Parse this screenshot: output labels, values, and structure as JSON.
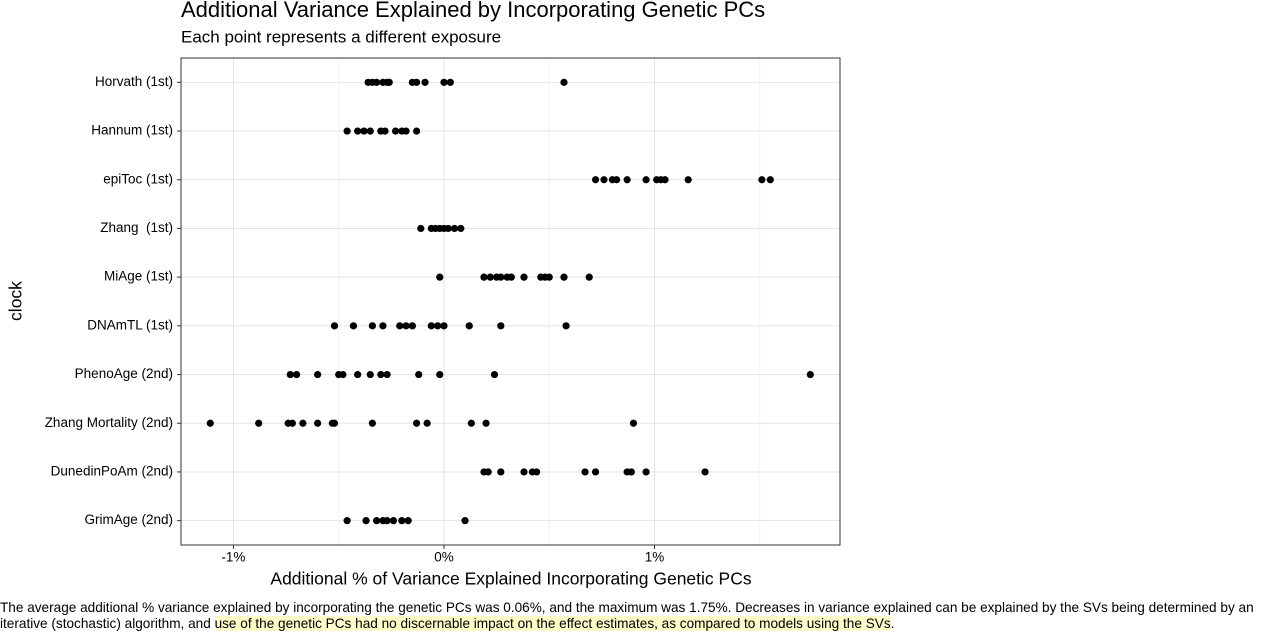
{
  "chart_data": {
    "type": "dot",
    "title": "Additional Variance Explained by Incorporating Genetic PCs",
    "subtitle": "Each point represents a different exposure",
    "x_label": "Additional % of Variance Explained Incorporating Genetic PCs",
    "y_label": "clock",
    "color": "#000000",
    "grid": true,
    "xlim": [
      -1.249,
      1.881
    ],
    "xticks": [
      {
        "value": -1,
        "label": "-1%"
      },
      {
        "value": 0,
        "label": "0%"
      },
      {
        "value": 1,
        "label": "1%"
      }
    ],
    "minor_xticks": [
      -0.5,
      0.5,
      1.5
    ],
    "categories": [
      "Horvath (1st)",
      "Hannum (1st)",
      "epiToc (1st)",
      "Zhang  (1st)",
      "MiAge (1st)",
      "DNAmTL (1st)",
      "PhenoAge (2nd)",
      "Zhang Mortality (2nd)",
      "DunedinPoAm (2nd)",
      "GrimAge (2nd)"
    ],
    "values": [
      [
        -0.36,
        -0.34,
        -0.32,
        -0.29,
        -0.27,
        -0.26,
        -0.15,
        -0.13,
        -0.09,
        0.0,
        0.03,
        0.57
      ],
      [
        -0.46,
        -0.41,
        -0.38,
        -0.35,
        -0.3,
        -0.28,
        -0.23,
        -0.2,
        -0.18,
        -0.13
      ],
      [
        0.72,
        0.76,
        0.8,
        0.82,
        0.87,
        0.96,
        1.01,
        1.03,
        1.05,
        1.16,
        1.51,
        1.55
      ],
      [
        -0.11,
        -0.06,
        -0.04,
        -0.02,
        0.0,
        0.02,
        0.05,
        0.08
      ],
      [
        -0.02,
        0.19,
        0.22,
        0.25,
        0.27,
        0.3,
        0.32,
        0.38,
        0.46,
        0.48,
        0.5,
        0.57,
        0.69
      ],
      [
        -0.52,
        -0.43,
        -0.34,
        -0.29,
        -0.21,
        -0.18,
        -0.15,
        -0.06,
        -0.03,
        0.0,
        0.12,
        0.27,
        0.58
      ],
      [
        -0.73,
        -0.7,
        -0.6,
        -0.5,
        -0.48,
        -0.41,
        -0.35,
        -0.3,
        -0.27,
        -0.12,
        -0.02,
        0.24,
        1.74
      ],
      [
        -1.11,
        -0.88,
        -0.74,
        -0.72,
        -0.67,
        -0.6,
        -0.53,
        -0.52,
        -0.34,
        -0.13,
        -0.08,
        0.13,
        0.2,
        0.9
      ],
      [
        0.19,
        0.21,
        0.27,
        0.38,
        0.42,
        0.44,
        0.67,
        0.72,
        0.87,
        0.89,
        0.96,
        1.24
      ],
      [
        -0.46,
        -0.37,
        -0.32,
        -0.29,
        -0.27,
        -0.24,
        -0.2,
        -0.17,
        0.1
      ]
    ]
  },
  "caption": {
    "text": "The average additional % variance explained by incorporating the genetic PCs was 0.06%, and the maximum was 1.75%. Decreases in variance explained can be explained by the SVs being determined by an iterative (stochastic) algorithm, and ",
    "highlight": "use of the genetic PCs had no discernable impact on the effect estimates, as compared to models using the SVs",
    "end": "."
  }
}
